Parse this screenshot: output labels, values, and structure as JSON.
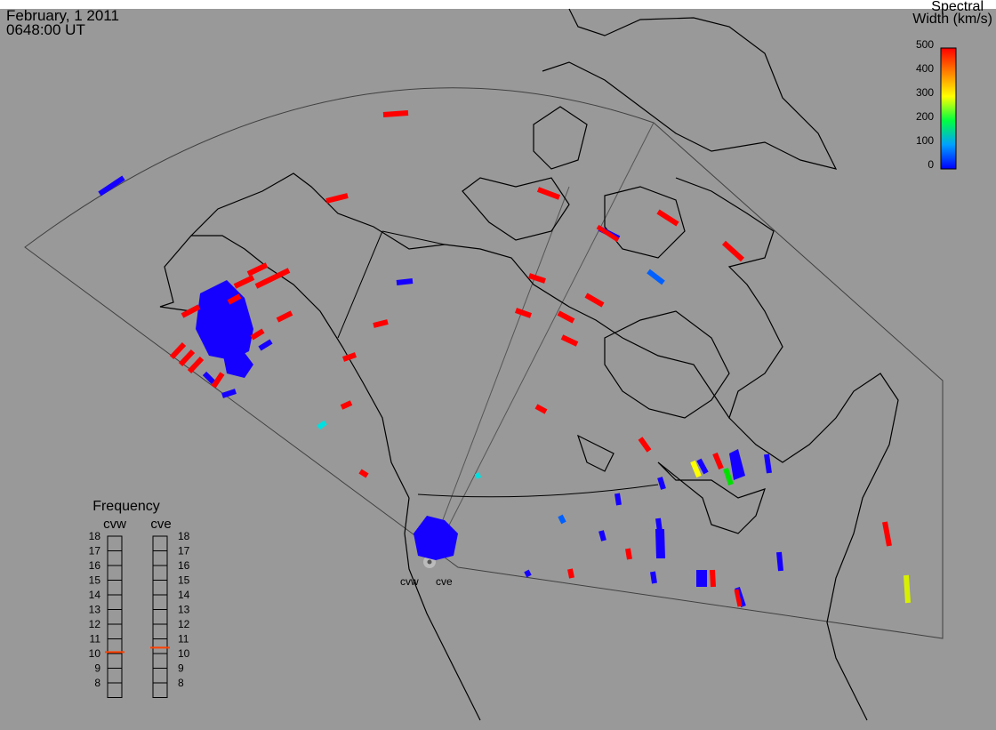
{
  "header": {
    "date": "February, 1 2011",
    "time": "0648:00 UT"
  },
  "colorbar": {
    "title_line1": "Spectral",
    "title_line2": "Width (km/s)",
    "ticks": [
      "500",
      "400",
      "300",
      "200",
      "100",
      "0"
    ],
    "range": [
      0,
      500
    ],
    "colors": [
      "#0000ff",
      "#0060ff",
      "#00c0ff",
      "#00ffd0",
      "#00ff40",
      "#60ff00",
      "#d0ff00",
      "#ffff00",
      "#ffc000",
      "#ff8000",
      "#ff3000",
      "#ff0000"
    ]
  },
  "frequency_panel": {
    "title": "Frequency",
    "radars": [
      {
        "name": "cvw",
        "frequency": 10.6
      },
      {
        "name": "cve",
        "frequency": 10.9
      }
    ],
    "ticks": [
      "18",
      "17",
      "16",
      "15",
      "14",
      "13",
      "12",
      "11",
      "10",
      "9",
      "8"
    ],
    "range": [
      8,
      18
    ],
    "marker_color": "#ff4000"
  },
  "radar_site_labels": [
    "cvw",
    "cve"
  ],
  "style": {
    "background": "#999999",
    "coast": "#000000",
    "fov_outline": "#444444",
    "marker": "#ff4000"
  }
}
